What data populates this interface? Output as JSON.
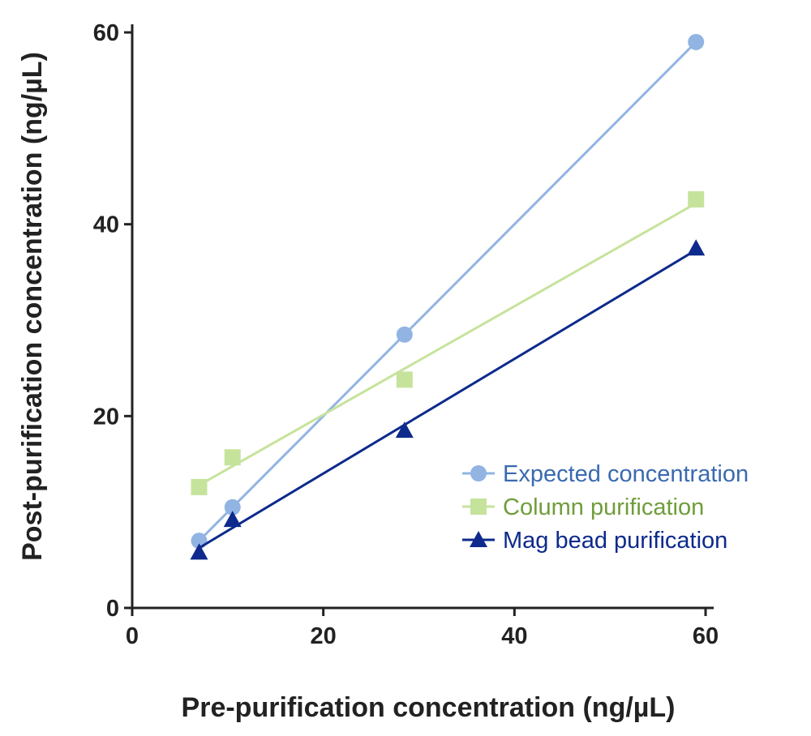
{
  "chart_data": {
    "type": "line",
    "title": "",
    "xlabel": "Pre-purification concentration (ng/µL)",
    "ylabel": "Post-purification concentration (ng/µL)",
    "xlim": [
      0,
      60
    ],
    "ylim": [
      0,
      60
    ],
    "xticks": [
      "0",
      "20",
      "40",
      "60"
    ],
    "yticks": [
      "0",
      "20",
      "40",
      "60"
    ],
    "grid": false,
    "legend_position": "bottom-right",
    "series": [
      {
        "name": "Expected concentration",
        "marker": "circle",
        "color": "#92b4e3",
        "label_color": "#3a6ab0",
        "x": [
          7,
          10.5,
          28.5,
          59
        ],
        "y": [
          7,
          10.5,
          28.5,
          59
        ]
      },
      {
        "name": "Column purification",
        "marker": "square",
        "color": "#c6e39c",
        "label_color": "#6f9d3a",
        "x": [
          7,
          10.5,
          28.5,
          59
        ],
        "y": [
          12.6,
          15.7,
          23.8,
          42.6
        ]
      },
      {
        "name": "Mag bead purification",
        "marker": "triangle",
        "color": "#0d2a8c",
        "label_color": "#0d2a8c",
        "x": [
          7,
          10.5,
          28.5,
          59
        ],
        "y": [
          5.8,
          9.2,
          18.5,
          37.5
        ]
      }
    ]
  }
}
